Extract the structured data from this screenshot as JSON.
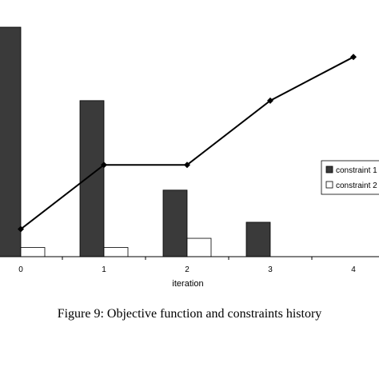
{
  "caption": "Figure 9: Objective function and constraints history",
  "colors": {
    "constraint1": "#3a3a3a",
    "constraint2": "#ffffff",
    "objective": "#000000"
  },
  "chart_data": {
    "type": "bar",
    "categories": [
      "0",
      "1",
      "2",
      "3",
      "4"
    ],
    "xlabel": "iteration",
    "ylabel": "",
    "grid": false,
    "legend_position": "right",
    "series": [
      {
        "name": "constraint 1",
        "type": "bar",
        "values": [
          1.0,
          0.68,
          0.29,
          0.15,
          0
        ]
      },
      {
        "name": "constraint 2",
        "type": "bar",
        "values": [
          0.04,
          0.04,
          0.08,
          0,
          0
        ]
      },
      {
        "type": "line",
        "values": [
          0.12,
          0.4,
          0.4,
          0.68,
          0.87
        ]
      }
    ],
    "ylim": [
      0,
      1.0
    ]
  }
}
